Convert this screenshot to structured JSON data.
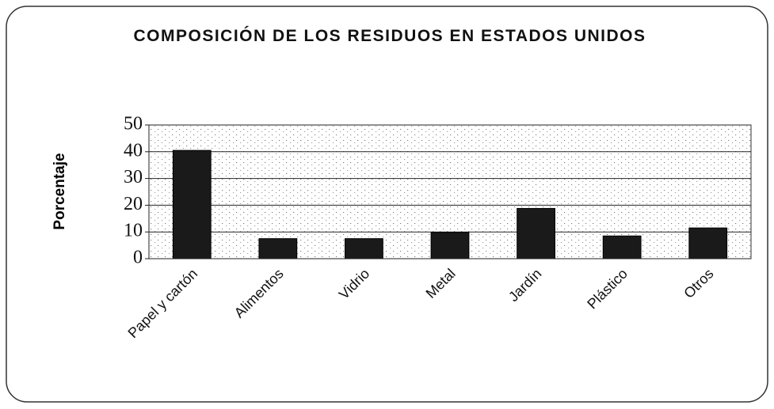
{
  "chart_data": {
    "type": "bar",
    "title": "COMPOSICIÓN DE LOS RESIDUOS EN ESTADOS UNIDOS",
    "y_label": "Porcentaje",
    "categories": [
      "Papel y cartón",
      "Alimentos",
      "Vidrio",
      "Metal",
      "Jardín",
      "Plástico",
      "Otros"
    ],
    "values": [
      40.5,
      7.5,
      7.5,
      9.8,
      18.8,
      8.5,
      11.5
    ],
    "color": "#1a1a1a",
    "ylim": [
      0,
      50
    ],
    "yticks": [
      0,
      10,
      20,
      30,
      40,
      50
    ],
    "grid": true
  }
}
